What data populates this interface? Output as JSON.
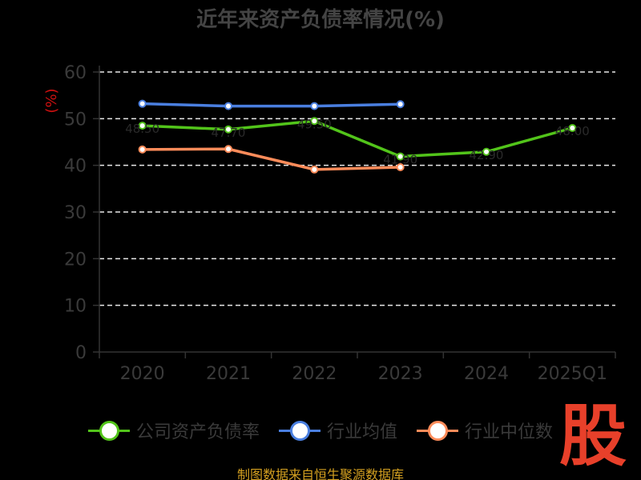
{
  "chart_data": {
    "type": "line",
    "title": "近年来资产负债率情况(%)",
    "ylabel": "(%)",
    "categories": [
      "2020",
      "2021",
      "2022",
      "2023",
      "2024",
      "2025Q1"
    ],
    "y_ticks": [
      "0",
      "10",
      "20",
      "30",
      "40",
      "50",
      "60"
    ],
    "ylim": [
      0,
      60
    ],
    "grid": true,
    "legend_position": "bottom",
    "series": [
      {
        "name": "公司资产负债率",
        "color": "#52c41a",
        "values": [
          48.5,
          47.7,
          49.5,
          41.9,
          42.9,
          48.0
        ]
      },
      {
        "name": "行业均值",
        "color": "#4a7fe0",
        "values": [
          53.2,
          52.7,
          52.7,
          53.1,
          null,
          null
        ]
      },
      {
        "name": "行业中位数",
        "color": "#ff8c5a",
        "values": [
          43.4,
          43.5,
          39.1,
          39.6,
          null,
          null
        ]
      }
    ]
  },
  "source": "制图数据来自恒生聚源数据库",
  "watermark": "股"
}
